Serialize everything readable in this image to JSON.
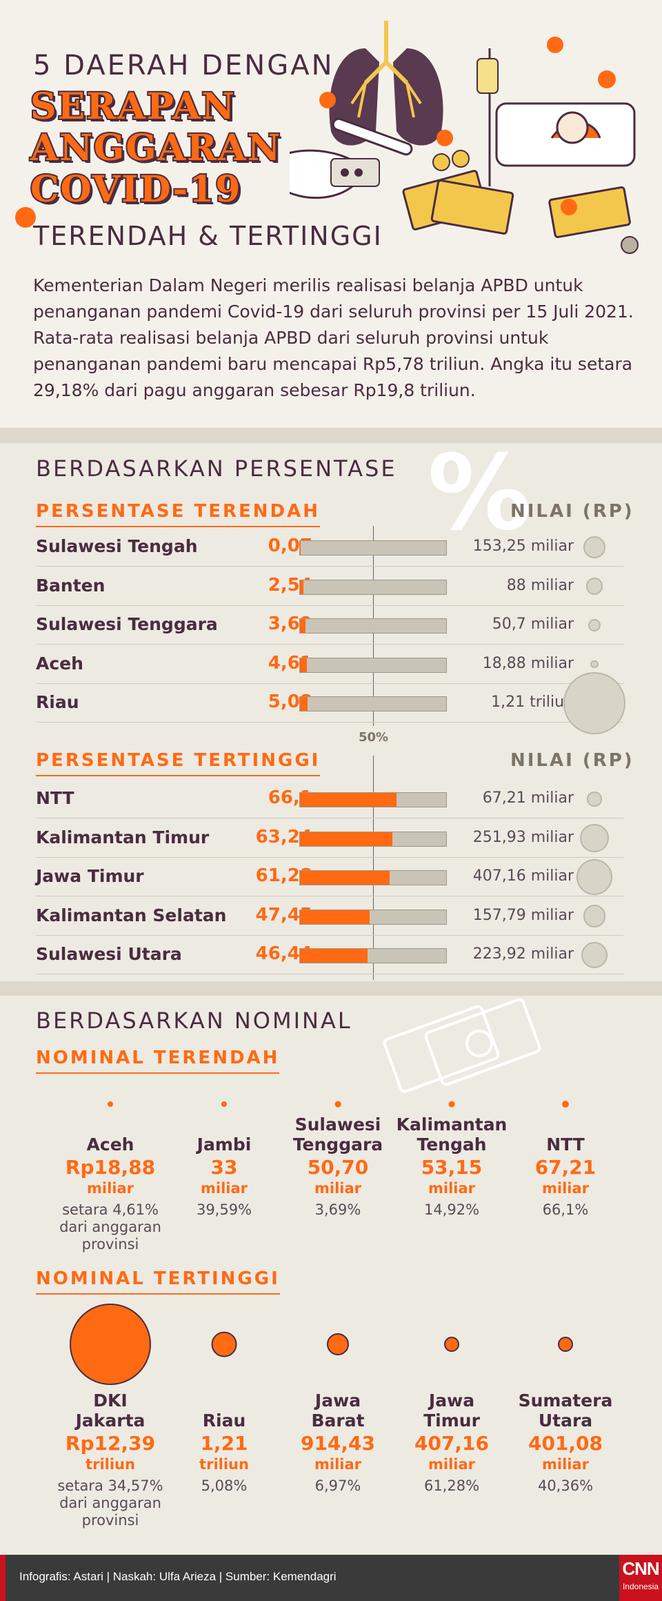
{
  "header": {
    "line1": "5 DAERAH DENGAN",
    "line2": "SERAPAN",
    "line3": "ANGGARAN",
    "line4": "COVID-19",
    "line5": "TERENDAH & TERTINGGI"
  },
  "intro": "Kementerian Dalam Negeri merilis realisasi belanja APBD untuk penanganan pandemi Covid-19 dari seluruh provinsi per 15 Juli 2021. Rata-rata realisasi belanja APBD dari seluruh provinsi untuk penanganan pandemi baru mencapai Rp5,78 triliun. Angka itu setara 29,18% dari pagu anggaran sebesar Rp19,8 triliun.",
  "percent_section": {
    "title": "BERDASARKAN PERSENTASE",
    "percent_glyph": "%",
    "low_title": "PERSENTASE TERENDAH",
    "high_title": "PERSENTASE TERTINGGI",
    "value_header": "NILAI (RP)",
    "pct_unit": "%",
    "midline_label": "50%",
    "low": [
      {
        "name": "Sulawesi Tengah",
        "pct": "0,07",
        "pct_value": 0.07,
        "value": "153,25 miliar",
        "amount_bn": 153.25
      },
      {
        "name": "Banten",
        "pct": "2,54",
        "pct_value": 2.54,
        "value": "88 miliar",
        "amount_bn": 88
      },
      {
        "name": "Sulawesi Tenggara",
        "pct": "3,69",
        "pct_value": 3.69,
        "value": "50,7 miliar",
        "amount_bn": 50.7
      },
      {
        "name": "Aceh",
        "pct": "4,61",
        "pct_value": 4.61,
        "value": "18,88 miliar",
        "amount_bn": 18.88
      },
      {
        "name": "Riau",
        "pct": "5,08",
        "pct_value": 5.08,
        "value": "1,21 triliun",
        "amount_bn": 1210
      }
    ],
    "high": [
      {
        "name": "NTT",
        "pct": "66,1",
        "pct_value": 66.1,
        "value": "67,21 miliar",
        "amount_bn": 67.21
      },
      {
        "name": "Kalimantan Timur",
        "pct": "63,24",
        "pct_value": 63.24,
        "value": "251,93 miliar",
        "amount_bn": 251.93
      },
      {
        "name": "Jawa Timur",
        "pct": "61,28",
        "pct_value": 61.28,
        "value": "407,16 miliar",
        "amount_bn": 407.16
      },
      {
        "name": "Kalimantan Selatan",
        "pct": "47,45",
        "pct_value": 47.45,
        "value": "157,79 miliar",
        "amount_bn": 157.79
      },
      {
        "name": "Sulawesi Utara",
        "pct": "46,44",
        "pct_value": 46.44,
        "value": "223,92 miliar",
        "amount_bn": 223.92
      }
    ]
  },
  "nominal_section": {
    "title": "BERDASARKAN NOMINAL",
    "low_title": "NOMINAL TERENDAH",
    "high_title": "NOMINAL TERTINGGI",
    "low": [
      {
        "name": "Aceh",
        "amount": "Rp18,88",
        "unit": "miliar",
        "pct": "setara 4,61% dari anggaran provinsi",
        "amount_bn": 18.88
      },
      {
        "name": "Jambi",
        "amount": "33",
        "unit": "miliar",
        "pct": "39,59%",
        "amount_bn": 33
      },
      {
        "name": "Sulawesi Tenggara",
        "amount": "50,70",
        "unit": "miliar",
        "pct": "3,69%",
        "amount_bn": 50.7
      },
      {
        "name": "Kalimantan Tengah",
        "amount": "53,15",
        "unit": "miliar",
        "pct": "14,92%",
        "amount_bn": 53.15
      },
      {
        "name": "NTT",
        "amount": "67,21",
        "unit": "miliar",
        "pct": "66,1%",
        "amount_bn": 67.21
      }
    ],
    "high": [
      {
        "name": "DKI Jakarta",
        "amount": "Rp12,39",
        "unit": "triliun",
        "pct": "setara 34,57% dari anggaran provinsi",
        "amount_bn": 12390
      },
      {
        "name": "Riau",
        "amount": "1,21",
        "unit": "triliun",
        "pct": "5,08%",
        "amount_bn": 1210
      },
      {
        "name": "Jawa Barat",
        "amount": "914,43",
        "unit": "miliar",
        "pct": "6,97%",
        "amount_bn": 914.43
      },
      {
        "name": "Jawa Timur",
        "amount": "407,16",
        "unit": "miliar",
        "pct": "61,28%",
        "amount_bn": 407.16
      },
      {
        "name": "Sumatera Utara",
        "amount": "401,08",
        "unit": "miliar",
        "pct": "40,36%",
        "amount_bn": 401.08
      }
    ]
  },
  "footer": {
    "credit": "Infografis: Astari | Naskah: Ulfa Arieza | Sumber: Kemendagri",
    "logo_main": "CNN",
    "logo_sub": "Indonesia"
  },
  "colors": {
    "accent": "#ff6a13",
    "text": "#4a2c40",
    "background": "#f4f1ea",
    "bar_bg": "#c9c4b6",
    "footer": "#3a3a3a",
    "brand_red": "#c9121e"
  }
}
